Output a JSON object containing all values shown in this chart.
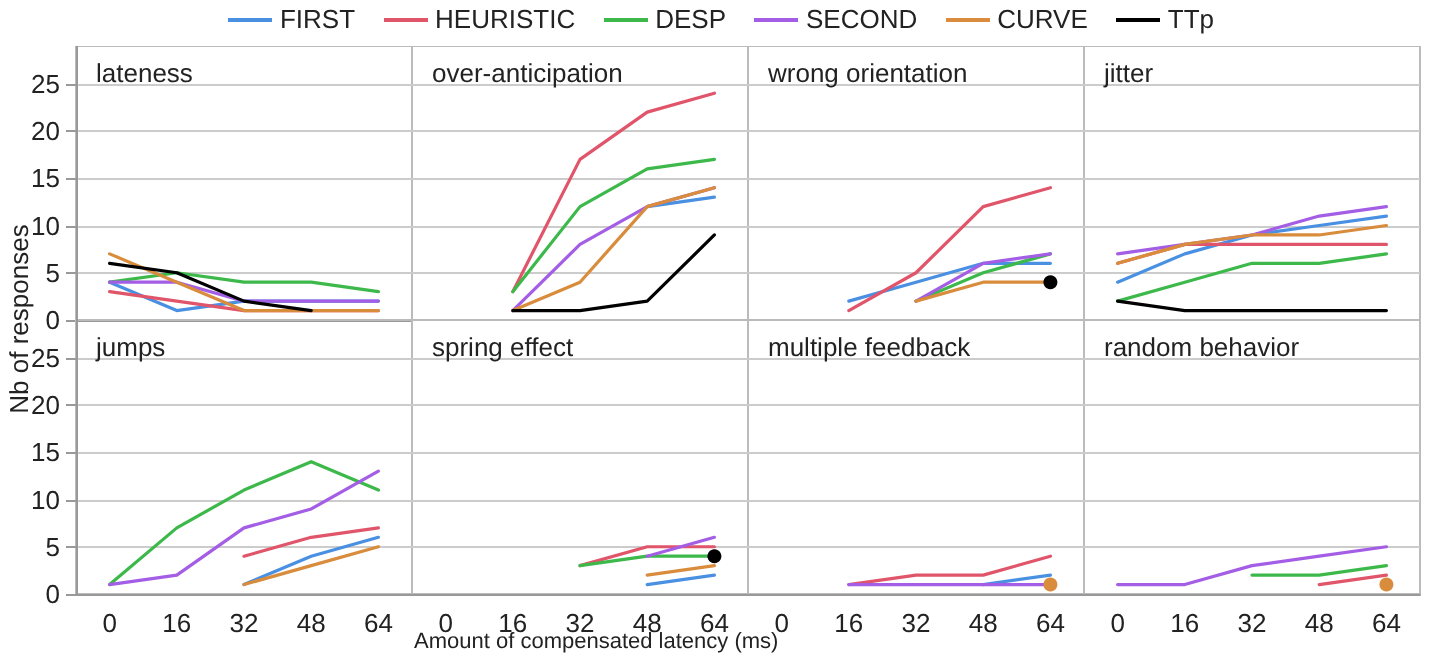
{
  "chart_data": [
    {
      "type": "line",
      "title": "lateness",
      "ylabel": "Nb of responses",
      "categories": [
        "0",
        "16",
        "32",
        "48",
        "64"
      ],
      "ylim": [
        0,
        29
      ],
      "yticks": [
        0,
        5,
        10,
        15,
        20,
        25
      ],
      "grid": "y",
      "legend": "top",
      "marker": "none",
      "tick_labels": "y",
      "series": [
        {
          "name": "FIRST",
          "color": "#4a90e2",
          "values": [
            4,
            1,
            2,
            2,
            2
          ]
        },
        {
          "name": "HEURISTIC",
          "color": "#e0556a",
          "values": [
            3,
            2,
            1,
            1,
            1
          ]
        },
        {
          "name": "DESP",
          "color": "#3cb94a",
          "values": [
            4,
            5,
            4,
            4,
            3
          ]
        },
        {
          "name": "SECOND",
          "color": "#a45ee5",
          "values": [
            4,
            4,
            2,
            2,
            2
          ]
        },
        {
          "name": "CURVE",
          "color": "#d98c3c",
          "values": [
            7,
            4,
            1,
            1,
            1
          ]
        },
        {
          "name": "TTp",
          "color": "#000000",
          "values": [
            6,
            5,
            2,
            1,
            null
          ]
        }
      ]
    },
    {
      "type": "line",
      "title": "over-anticipation",
      "categories": [
        "0",
        "16",
        "32",
        "48",
        "64"
      ],
      "ylim": [
        0,
        29
      ],
      "yticks": [
        0,
        5,
        10,
        15,
        20,
        25
      ],
      "grid": "y",
      "marker": "none",
      "tick_labels": false,
      "series": [
        {
          "color": "#4a90e2",
          "values": [
            null,
            null,
            null,
            12,
            13
          ]
        },
        {
          "color": "#e0556a",
          "values": [
            null,
            3,
            17,
            22,
            24
          ]
        },
        {
          "color": "#3cb94a",
          "values": [
            null,
            3,
            12,
            16,
            17
          ]
        },
        {
          "color": "#a45ee5",
          "values": [
            null,
            1,
            8,
            12,
            14
          ]
        },
        {
          "color": "#d98c3c",
          "values": [
            null,
            1,
            4,
            12,
            14
          ]
        },
        {
          "color": "#000000",
          "values": [
            null,
            1,
            1,
            2,
            9
          ]
        }
      ]
    },
    {
      "type": "line",
      "title": "wrong orientation",
      "categories": [
        "0",
        "16",
        "32",
        "48",
        "64"
      ],
      "ylim": [
        0,
        29
      ],
      "yticks": [
        0,
        5,
        10,
        15,
        20,
        25
      ],
      "grid": "y",
      "marker": "none",
      "tick_labels": false,
      "series": [
        {
          "color": "#4a90e2",
          "values": [
            null,
            2,
            4,
            6,
            6
          ]
        },
        {
          "color": "#e0556a",
          "values": [
            null,
            1,
            5,
            12,
            14
          ]
        },
        {
          "color": "#3cb94a",
          "values": [
            null,
            null,
            2,
            5,
            7
          ]
        },
        {
          "color": "#a45ee5",
          "values": [
            null,
            null,
            2,
            6,
            7
          ]
        },
        {
          "color": "#d98c3c",
          "values": [
            null,
            null,
            2,
            4,
            4
          ]
        },
        {
          "color": "#000000",
          "marker": "circle",
          "values": [
            null,
            null,
            null,
            null,
            4
          ]
        }
      ]
    },
    {
      "type": "line",
      "title": "jitter",
      "categories": [
        "0",
        "16",
        "32",
        "48",
        "64"
      ],
      "ylim": [
        0,
        29
      ],
      "yticks": [
        0,
        5,
        10,
        15,
        20,
        25
      ],
      "grid": "y",
      "marker": "none",
      "tick_labels": false,
      "series": [
        {
          "color": "#4a90e2",
          "values": [
            4,
            7,
            9,
            10,
            11
          ]
        },
        {
          "color": "#e0556a",
          "values": [
            6,
            8,
            8,
            8,
            8
          ]
        },
        {
          "color": "#3cb94a",
          "values": [
            2,
            4,
            6,
            6,
            7
          ]
        },
        {
          "color": "#a45ee5",
          "values": [
            7,
            8,
            9,
            11,
            12
          ]
        },
        {
          "color": "#d98c3c",
          "values": [
            6,
            8,
            9,
            9,
            10
          ]
        },
        {
          "color": "#000000",
          "values": [
            2,
            1,
            1,
            1,
            1
          ]
        }
      ]
    },
    {
      "type": "line",
      "title": "jumps",
      "categories": [
        "0",
        "16",
        "32",
        "48",
        "64"
      ],
      "ylim": [
        0,
        29
      ],
      "yticks": [
        0,
        5,
        10,
        15,
        20,
        25
      ],
      "grid": "y",
      "marker": "none",
      "series": [
        {
          "color": "#4a90e2",
          "values": [
            null,
            null,
            1,
            4,
            6
          ]
        },
        {
          "color": "#e0556a",
          "values": [
            null,
            null,
            4,
            6,
            7
          ]
        },
        {
          "color": "#3cb94a",
          "values": [
            1,
            7,
            11,
            14,
            11
          ]
        },
        {
          "color": "#a45ee5",
          "values": [
            1,
            2,
            7,
            9,
            13
          ]
        },
        {
          "color": "#d98c3c",
          "values": [
            null,
            null,
            1,
            3,
            5
          ]
        }
      ]
    },
    {
      "type": "line",
      "title": "spring effect",
      "xlabel": "Amount of compensated latency (ms)",
      "categories": [
        "0",
        "16",
        "32",
        "48",
        "64"
      ],
      "ylim": [
        0,
        29
      ],
      "yticks": [
        0,
        5,
        10,
        15,
        20,
        25
      ],
      "grid": "y",
      "marker": "none",
      "tick_labels": "x",
      "series": [
        {
          "color": "#4a90e2",
          "values": [
            null,
            null,
            null,
            1,
            2
          ]
        },
        {
          "color": "#e0556a",
          "values": [
            null,
            null,
            3,
            5,
            5
          ]
        },
        {
          "color": "#3cb94a",
          "values": [
            null,
            null,
            3,
            4,
            4
          ]
        },
        {
          "color": "#a45ee5",
          "values": [
            null,
            null,
            null,
            4,
            6
          ]
        },
        {
          "color": "#d98c3c",
          "values": [
            null,
            null,
            null,
            2,
            3
          ]
        },
        {
          "color": "#000000",
          "marker": "circle",
          "values": [
            null,
            null,
            null,
            null,
            4
          ]
        }
      ]
    },
    {
      "type": "line",
      "title": "multiple feedback",
      "categories": [
        "0",
        "16",
        "32",
        "48",
        "64"
      ],
      "ylim": [
        0,
        29
      ],
      "yticks": [
        0,
        5,
        10,
        15,
        20,
        25
      ],
      "grid": "y",
      "marker": "none",
      "tick_labels": "x",
      "series": [
        {
          "color": "#4a90e2",
          "values": [
            null,
            null,
            null,
            1,
            2
          ]
        },
        {
          "color": "#e0556a",
          "values": [
            null,
            1,
            2,
            2,
            4
          ]
        },
        {
          "color": "#a45ee5",
          "values": [
            null,
            1,
            1,
            1,
            1
          ]
        },
        {
          "color": "#d98c3c",
          "marker": "circle",
          "values": [
            null,
            null,
            null,
            null,
            1
          ]
        }
      ]
    },
    {
      "type": "line",
      "title": "random behavior",
      "categories": [
        "0",
        "16",
        "32",
        "48",
        "64"
      ],
      "ylim": [
        0,
        29
      ],
      "yticks": [
        0,
        5,
        10,
        15,
        20,
        25
      ],
      "grid": "y",
      "marker": "none",
      "tick_labels": "x",
      "series": [
        {
          "color": "#e0556a",
          "values": [
            null,
            null,
            null,
            1,
            2
          ]
        },
        {
          "color": "#3cb94a",
          "values": [
            null,
            null,
            2,
            2,
            3
          ]
        },
        {
          "color": "#a45ee5",
          "values": [
            1,
            1,
            3,
            4,
            5
          ]
        },
        {
          "color": "#d98c3c",
          "marker": "circle",
          "values": [
            null,
            null,
            null,
            null,
            1
          ]
        }
      ]
    }
  ]
}
